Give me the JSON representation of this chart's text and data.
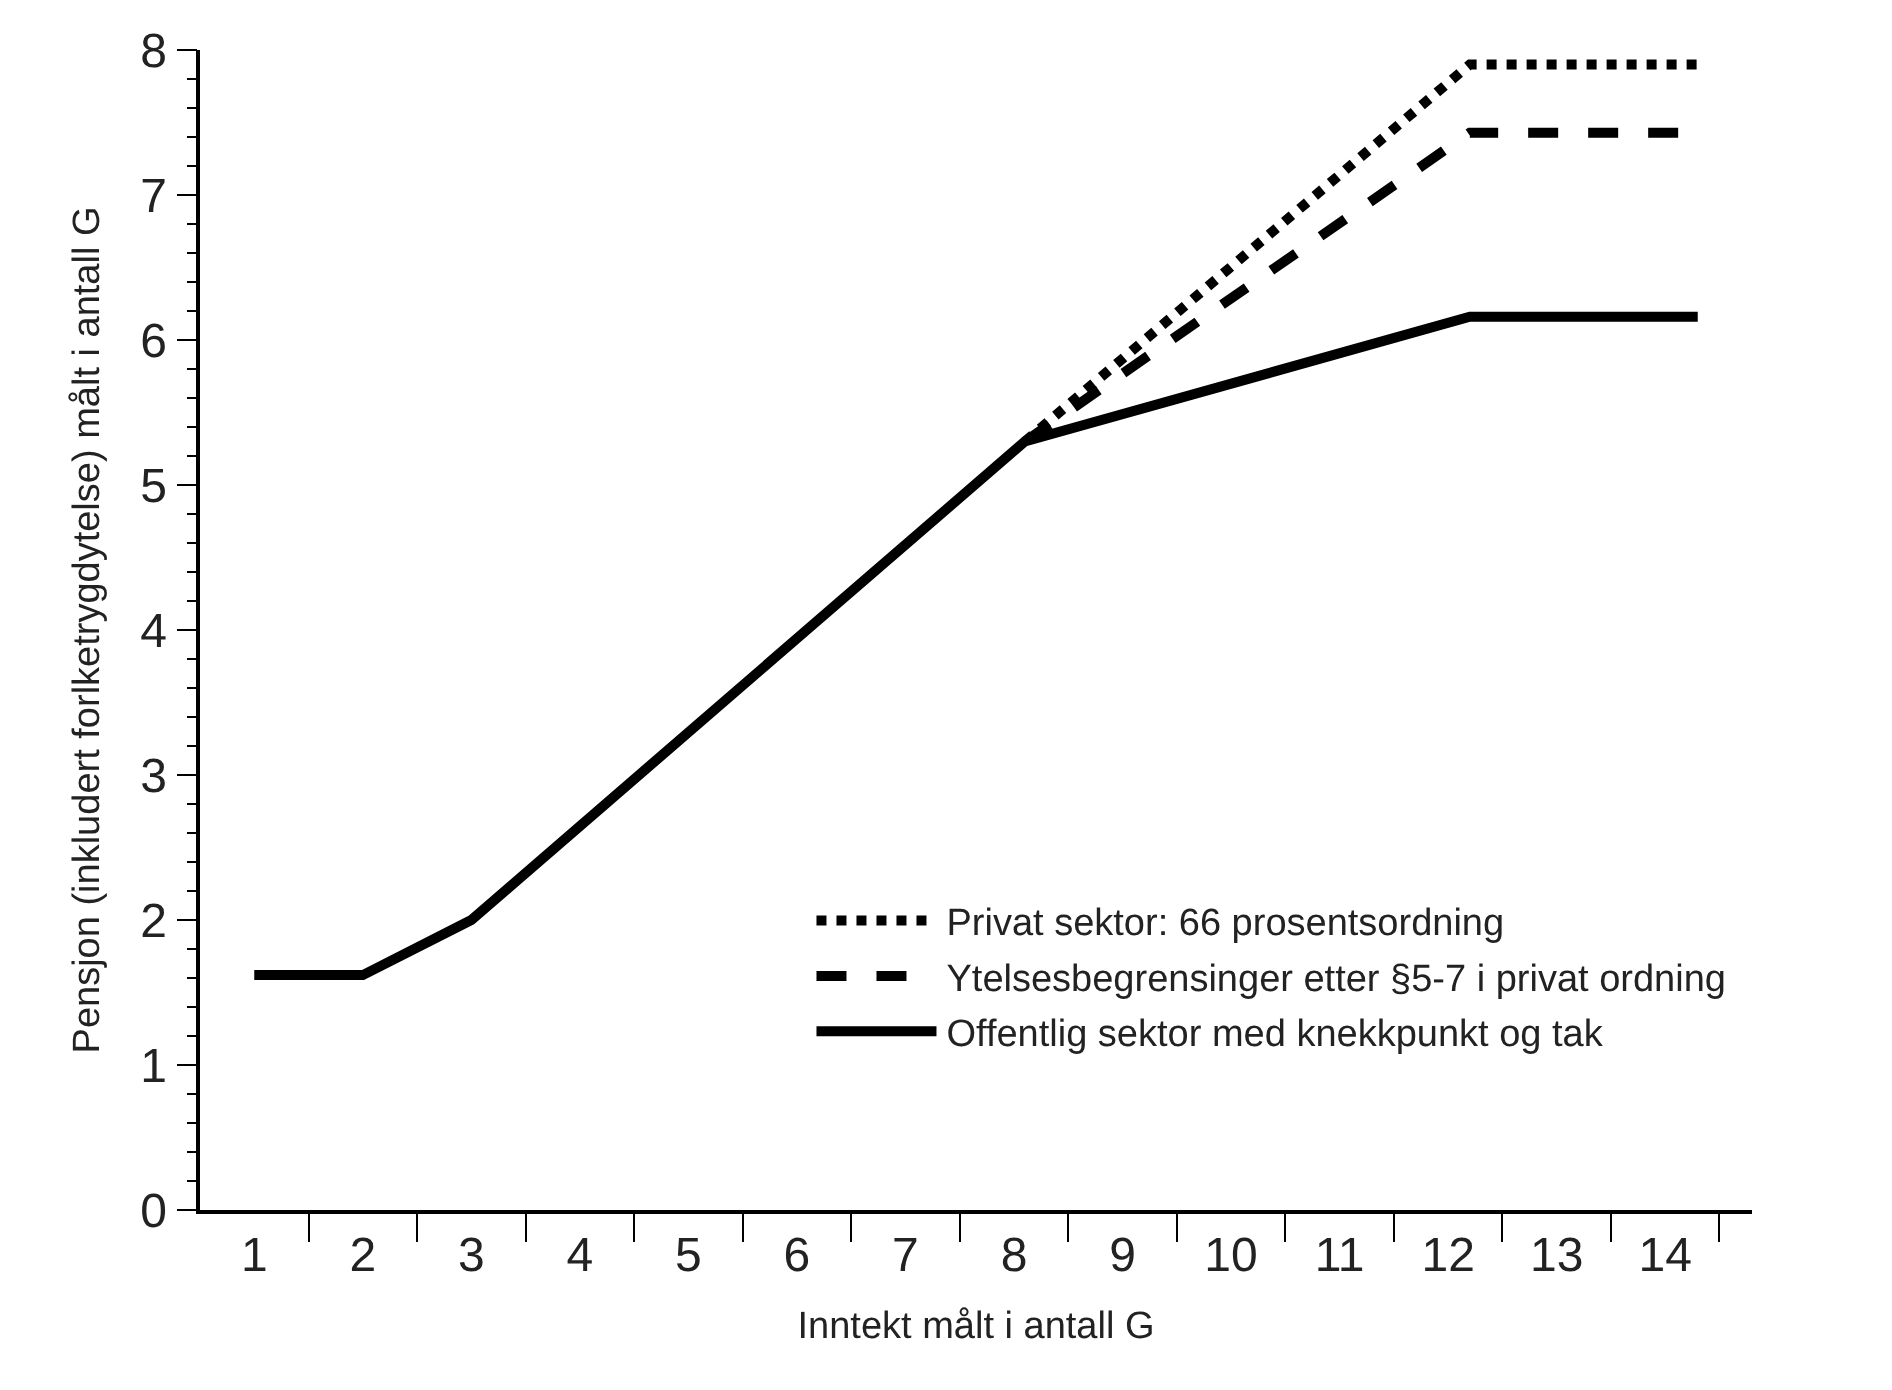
{
  "chart_data": {
    "type": "line",
    "xlabel": "Inntekt målt i antall G",
    "ylabel": "Pensjon (inkludert forlketrygdytelse) målt i antall G",
    "xlim": [
      0.5,
      14.8
    ],
    "xticks": [
      1,
      2,
      3,
      4,
      5,
      6,
      7,
      8,
      9,
      10,
      11,
      12,
      13,
      14
    ],
    "ylim": [
      0,
      8
    ],
    "yticks": [
      0,
      1,
      2,
      3,
      4,
      5,
      6,
      7,
      8
    ],
    "legend": "bottom right",
    "marker": "none",
    "series": [
      {
        "name": "Privat sektor: 66 prosentsordning",
        "color": "#000000",
        "line_style": "dotted",
        "x": [
          8.1,
          12.2,
          14.3
        ],
        "values": [
          5.3,
          7.9,
          7.9
        ]
      },
      {
        "name": "Ytelsesbegrensinger etter §5-7 i privat ordning",
        "color": "#000000",
        "line_style": "dashed",
        "x": [
          8.1,
          12.2,
          14.2
        ],
        "values": [
          5.3,
          7.43,
          7.43
        ]
      },
      {
        "name": "Offentlig sektor med knekkpunkt og tak",
        "color": "#000000",
        "line_style": "solid",
        "x": [
          1,
          2,
          3,
          8.1,
          12.2,
          14.3
        ],
        "values": [
          1.62,
          1.62,
          2.0,
          5.3,
          6.16,
          6.16
        ]
      }
    ]
  }
}
